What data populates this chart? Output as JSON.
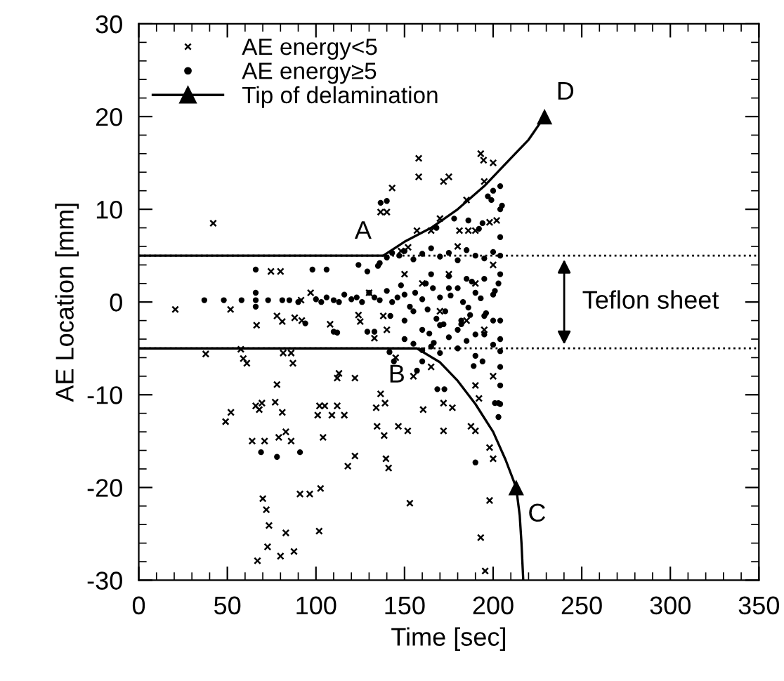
{
  "chart_data": {
    "type": "scatter",
    "xlabel": "Time [sec]",
    "ylabel": "AE Location [mm]",
    "xlim": [
      0,
      350
    ],
    "xticks": [
      0,
      50,
      100,
      150,
      200,
      250,
      300,
      350
    ],
    "ylim": [
      -30,
      30
    ],
    "yticks": [
      -30,
      -20,
      -10,
      0,
      10,
      20,
      30
    ],
    "grid": false,
    "legend": "top left",
    "series": [
      {
        "name": "AE energy<5",
        "marker": "cross",
        "color": "#000000",
        "x": [
          37.8,
          57.6,
          59,
          61,
          81.5,
          86,
          87,
          78,
          66,
          68,
          69.5,
          77,
          81,
          49,
          52,
          64,
          71,
          79,
          83,
          86,
          102,
          105,
          101,
          104,
          109,
          112,
          116,
          113,
          112,
          122,
          118,
          122,
          70,
          72,
          73.5,
          72.7,
          67,
          80,
          83,
          87.6,
          91,
          96.5,
          102.6,
          101.8,
          42,
          20.6,
          51.8,
          74.6,
          80,
          66.5,
          78,
          81,
          88,
          92,
          97,
          91.6,
          108,
          124,
          125,
          133,
          138,
          140,
          158,
          158,
          143,
          136.5,
          172,
          175,
          193,
          194.6,
          157,
          165,
          181,
          186,
          190,
          198,
          202,
          148,
          152,
          136.5,
          139,
          134,
          134.5,
          138.5,
          146.5,
          151.8,
          139.5,
          141,
          153,
          172,
          160.5,
          177,
          187.5,
          190,
          198,
          200,
          198,
          193,
          195.5,
          192,
          172,
          150,
          160,
          170,
          175,
          185,
          190,
          195,
          200,
          180,
          165,
          155,
          145,
          200,
          190,
          170,
          185,
          195,
          200,
          140,
          130
        ],
        "values": [
          -5.6,
          -5.1,
          -6.1,
          -6.6,
          -5.5,
          -5.5,
          -6.6,
          -8.9,
          -11.2,
          -11.6,
          -10.9,
          -10.8,
          -11.9,
          -12.9,
          -11.9,
          -15,
          -15,
          -14.6,
          -14,
          -15,
          -11.2,
          -11.2,
          -12.2,
          -14.6,
          -12.2,
          -11.2,
          -12.2,
          -7.7,
          -8.2,
          -8.2,
          -17.7,
          -16.6,
          -21.2,
          -22.4,
          -24.1,
          -26.4,
          -27.9,
          -27.4,
          -24.9,
          -26.9,
          -20.7,
          -20.7,
          -20.1,
          -24.7,
          8.5,
          -0.8,
          -0.8,
          3.3,
          3.3,
          -2.5,
          -1.5,
          -2.1,
          -1.7,
          -2,
          1,
          0.2,
          -2.4,
          -1.4,
          -2.1,
          -3.9,
          -1.5,
          9.7,
          15.5,
          13.5,
          12.3,
          9.7,
          13,
          13.5,
          16,
          15.3,
          7.7,
          7.7,
          7.7,
          7.7,
          7.7,
          8.6,
          8.8,
          5.5,
          5.9,
          -9.9,
          -10.9,
          -11.4,
          -13.4,
          -14.4,
          -13.4,
          -13.9,
          -16.9,
          -17.9,
          -21.7,
          -13.9,
          -11.6,
          -11.4,
          -13.4,
          -13.9,
          -15.7,
          -16.9,
          -21.4,
          -25.4,
          -29,
          -10.4,
          -10.9,
          3,
          2,
          -1,
          3,
          -2,
          2,
          -3,
          4,
          6,
          -7,
          -8,
          -6,
          -8,
          -9,
          9,
          11,
          13,
          15,
          -3,
          1
        ]
      },
      {
        "name": "AE energy≥5",
        "marker": "circle",
        "color": "#000000",
        "x": [
          37,
          48,
          58,
          66,
          66,
          66,
          73,
          81,
          85,
          90,
          66,
          98,
          106,
          124,
          94,
          112,
          129,
          135,
          140,
          110,
          69,
          78,
          91,
          129,
          133,
          136.5,
          197,
          199,
          205,
          204,
          194,
          192,
          186,
          178,
          168,
          168.5,
          172.5,
          190,
          201,
          203,
          203,
          189,
          194,
          160,
          157,
          141.5,
          144,
          166.5,
          164,
          172,
          182,
          187,
          100,
          103,
          106,
          110,
          113,
          116,
          120,
          123,
          126,
          130,
          133,
          136,
          140,
          143,
          146,
          150,
          153,
          156,
          160,
          163,
          166,
          170,
          173,
          176,
          180,
          183,
          186,
          190,
          193,
          196,
          200,
          203,
          204,
          142,
          148,
          155,
          162,
          168,
          175,
          182,
          188,
          195,
          201,
          136,
          140,
          143,
          147,
          150,
          155,
          160,
          165,
          170,
          175,
          180,
          185,
          190,
          195,
          200,
          204,
          150,
          155,
          160,
          165,
          170,
          175,
          180,
          185,
          190,
          195,
          200,
          204,
          150,
          160,
          170,
          180,
          190,
          200,
          204,
          204,
          204,
          204,
          200,
          185,
          175,
          195,
          165,
          204,
          204,
          204
        ],
        "values": [
          0.2,
          0.2,
          0.2,
          1,
          0.2,
          -0.5,
          0.2,
          0.2,
          0.2,
          0,
          3.5,
          3.5,
          3.5,
          4,
          -2.3,
          -3.3,
          3.3,
          3.9,
          10.9,
          -3.2,
          -16.2,
          -16.7,
          -16.2,
          -3.2,
          -3.2,
          10.7,
          11.4,
          11,
          10.4,
          12.5,
          8.5,
          7.9,
          8.8,
          9,
          8,
          -9.4,
          -9.4,
          -17.3,
          -10.9,
          -10.9,
          -12.4,
          -6.9,
          -6.4,
          -6.4,
          -7.4,
          -5.4,
          -6.4,
          -4.4,
          -3.4,
          -2.4,
          -2.4,
          -1.4,
          0.3,
          0,
          0.5,
          0.2,
          0,
          0.8,
          0.3,
          0.5,
          0,
          1,
          0.5,
          0.2,
          1.2,
          0,
          0.5,
          0.8,
          -0.5,
          1,
          0.3,
          -0.8,
          1.5,
          0.5,
          -1,
          0.7,
          1.5,
          0,
          -0.6,
          1,
          0.4,
          -1.2,
          0.8,
          2,
          -2,
          -1.5,
          1.8,
          -1,
          2,
          -1.8,
          1.5,
          -2,
          2.2,
          -1.5,
          1.2,
          4.2,
          4.8,
          5.3,
          5,
          5.5,
          4.6,
          5.2,
          5.8,
          4.9,
          5.3,
          4.5,
          5.6,
          5,
          4.7,
          5.4,
          5,
          -4,
          -4.5,
          -5.2,
          -4.8,
          -5.5,
          -3.8,
          -5,
          -4.2,
          -5.8,
          -3.5,
          -4.6,
          -5.3,
          -2,
          -3,
          -2.5,
          -3,
          -3.5,
          -2,
          -7,
          -9,
          3,
          7,
          12,
          2.5,
          2.8,
          2.5,
          3,
          -4,
          -11,
          10
        ]
      },
      {
        "type": "line",
        "color": "#000000",
        "marker": "none",
        "line_style": "solid",
        "x": [
          0,
          138,
          150,
          165,
          180,
          195,
          210,
          220,
          229
        ],
        "values": [
          5,
          5,
          6.5,
          8,
          10,
          12.5,
          15.5,
          17.5,
          20
        ]
      },
      {
        "type": "line",
        "color": "#000000",
        "marker": "none",
        "line_style": "solid",
        "x": [
          0,
          157,
          170,
          180,
          190,
          200,
          207,
          213,
          215,
          216,
          217
        ],
        "values": [
          -5,
          -5,
          -6.5,
          -8.5,
          -11,
          -14,
          -17,
          -20,
          -23,
          -26,
          -30
        ]
      },
      {
        "name": "Tip of delamination",
        "marker": "triangle",
        "color": "#000000",
        "line_style": "solid",
        "x": [
          229,
          213
        ],
        "values": [
          20,
          -20
        ]
      }
    ],
    "ref_lines": [
      {
        "axis": "y",
        "value": 5,
        "line_style": "dotted",
        "color": "#000000"
      },
      {
        "axis": "y",
        "value": -5,
        "line_style": "dotted",
        "color": "#000000"
      }
    ],
    "annotations": [
      {
        "text": "A",
        "x": 138,
        "y": 5
      },
      {
        "text": "B",
        "x": 157,
        "y": -5
      },
      {
        "text": "C",
        "x": 213,
        "y": -20
      },
      {
        "text": "D",
        "x": 229,
        "y": 20
      },
      "Teflon sheet"
    ]
  }
}
